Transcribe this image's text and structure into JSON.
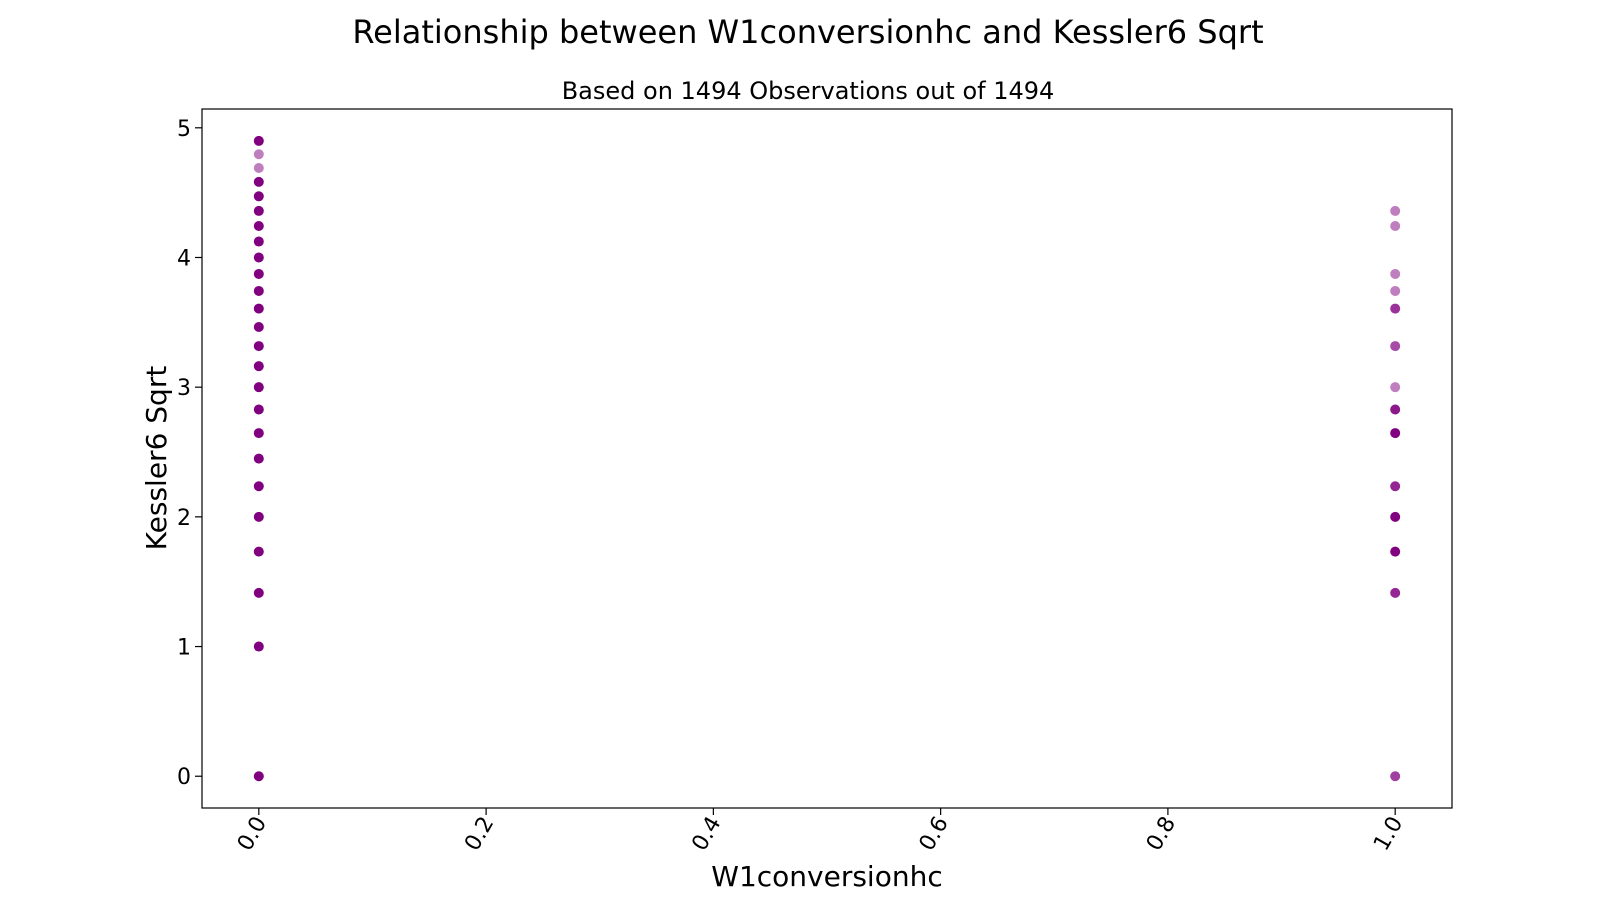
{
  "chart_data": {
    "type": "scatter",
    "title": "Relationship between W1conversionhc and Kessler6 Sqrt",
    "subtitle": "Based on 1494 Observations out of 1494",
    "xlabel": "W1conversionhc",
    "ylabel": "Kessler6 Sqrt",
    "xlim": [
      -0.05,
      1.05
    ],
    "ylim": [
      -0.245,
      5.145
    ],
    "xticks": [
      0.0,
      0.2,
      0.4,
      0.6,
      0.8,
      1.0
    ],
    "xtick_labels": [
      "0.0",
      "0.2",
      "0.4",
      "0.6",
      "0.8",
      "1.0"
    ],
    "yticks": [
      0,
      1,
      2,
      3,
      4,
      5
    ],
    "ytick_labels": [
      "0",
      "1",
      "2",
      "3",
      "4",
      "5"
    ],
    "grid": false,
    "marker_color": "#800080",
    "series": [
      {
        "x": 0.0,
        "y": [
          0,
          1,
          1.414,
          1.732,
          2,
          2.236,
          2.449,
          2.646,
          2.828,
          3,
          3.162,
          3.317,
          3.464,
          3.606,
          3.742,
          3.873,
          4,
          4.123,
          4.243,
          4.359,
          4.472,
          4.583,
          4.69,
          4.796,
          4.899
        ],
        "opacity": [
          1,
          1,
          1,
          1,
          1,
          1,
          1,
          1,
          1,
          1,
          1,
          1,
          1,
          1,
          1,
          1,
          1,
          1,
          1,
          1,
          1,
          1,
          0.5,
          0.5,
          1
        ]
      },
      {
        "x": 1.0,
        "y": [
          0,
          1.414,
          1.732,
          2,
          2.236,
          2.646,
          2.828,
          3,
          3.317,
          3.606,
          3.742,
          3.873,
          4.243,
          4.359
        ],
        "opacity": [
          0.75,
          0.85,
          1,
          1,
          0.85,
          1,
          0.9,
          0.5,
          0.7,
          0.8,
          0.5,
          0.5,
          0.5,
          0.5
        ]
      }
    ]
  }
}
